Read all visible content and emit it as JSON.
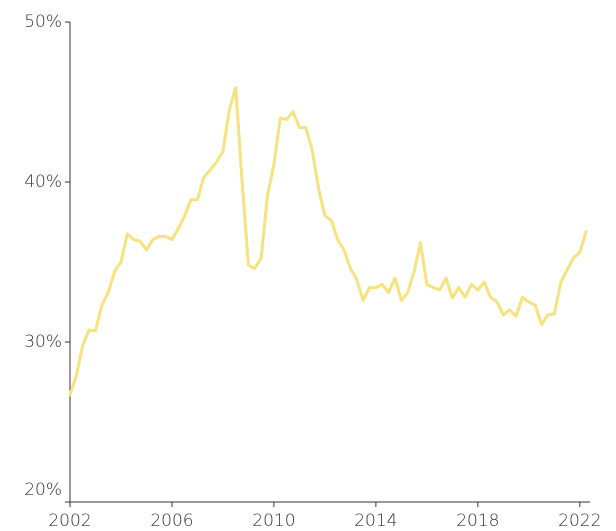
{
  "chart_data": {
    "type": "line",
    "x": [
      2002,
      2002.25,
      2002.5,
      2002.75,
      2003,
      2003.25,
      2003.5,
      2003.75,
      2004,
      2004.25,
      2004.5,
      2004.75,
      2005,
      2005.25,
      2005.5,
      2005.75,
      2006,
      2006.25,
      2006.5,
      2006.75,
      2007,
      2007.25,
      2007.5,
      2007.75,
      2008,
      2008.25,
      2008.5,
      2008.75,
      2009,
      2009.25,
      2009.5,
      2009.75,
      2010,
      2010.25,
      2010.5,
      2010.75,
      2011,
      2011.25,
      2011.5,
      2011.75,
      2012,
      2012.25,
      2012.5,
      2012.75,
      2013,
      2013.25,
      2013.5,
      2013.75,
      2014,
      2014.25,
      2014.5,
      2014.75,
      2015,
      2015.25,
      2015.5,
      2015.75,
      2016,
      2016.25,
      2016.5,
      2016.75,
      2017,
      2017.25,
      2017.5,
      2017.75,
      2018,
      2018.25,
      2018.5,
      2018.75,
      2019,
      2019.25,
      2019.5,
      2019.75,
      2020,
      2020.25,
      2020.5,
      2020.75,
      2021,
      2021.25,
      2021.5,
      2021.75,
      2022,
      2022.25
    ],
    "series": [
      {
        "color": "#f6e27f",
        "values": [
          26.7,
          27.9,
          29.8,
          30.75,
          30.7,
          32.3,
          33.1,
          34.4,
          35.0,
          36.75,
          36.4,
          36.3,
          35.75,
          36.4,
          36.6,
          36.6,
          36.4,
          37.1,
          37.9,
          38.9,
          38.9,
          40.3,
          40.75,
          41.25,
          41.9,
          44.5,
          45.9,
          40.1,
          34.8,
          34.6,
          35.25,
          39.2,
          41.1,
          44.0,
          43.9,
          44.4,
          43.4,
          43.4,
          42.0,
          39.6,
          37.9,
          37.6,
          36.4,
          35.75,
          34.6,
          33.9,
          32.6,
          33.4,
          33.4,
          33.6,
          33.1,
          34.0,
          32.6,
          33.1,
          34.4,
          36.2,
          33.6,
          33.4,
          33.25,
          34.0,
          32.75,
          33.4,
          32.8,
          33.6,
          33.25,
          33.75,
          32.8,
          32.5,
          31.7,
          32.0,
          31.6,
          32.8,
          32.5,
          32.3,
          31.1,
          31.7,
          31.75,
          33.7,
          34.5,
          35.25,
          35.6,
          36.9
        ]
      }
    ],
    "xlim": [
      2002,
      2022.4
    ],
    "xticks": [
      2002,
      2006,
      2010,
      2014,
      2018,
      2022
    ],
    "ylim": [
      20,
      50
    ],
    "yticks": [
      {
        "value": 20,
        "label": "20%"
      },
      {
        "value": 30,
        "label": "30%"
      },
      {
        "value": 40,
        "label": "40%"
      },
      {
        "value": 50,
        "label": "50%"
      }
    ]
  }
}
